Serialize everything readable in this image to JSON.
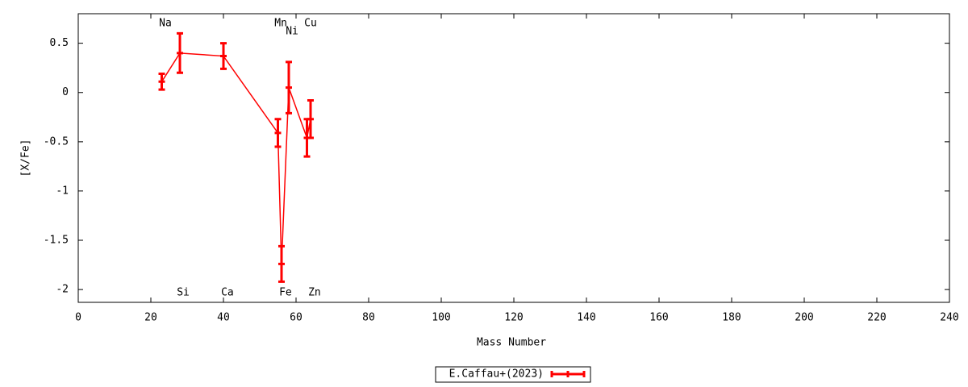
{
  "chart_data": {
    "type": "line",
    "xlabel": "Mass Number",
    "ylabel": "[X/Fe]",
    "xlim": [
      0,
      240
    ],
    "ylim": [
      -2.13,
      0.8
    ],
    "xticks": [
      0,
      20,
      40,
      60,
      80,
      100,
      120,
      140,
      160,
      180,
      200,
      220,
      240
    ],
    "yticks": [
      0.5,
      0,
      -0.5,
      -1,
      -1.5,
      -2
    ],
    "grid": false,
    "legend": "bottom",
    "x": [
      23,
      28,
      40,
      55,
      56,
      58,
      63,
      64
    ],
    "series": [
      {
        "name": "E.Caffau+(2023)",
        "color": "#ff0000",
        "values": [
          0.11,
          0.4,
          0.37,
          -0.41,
          -1.74,
          0.05,
          -0.46,
          -0.27
        ],
        "errors": [
          0.08,
          0.2,
          0.13,
          0.14,
          0.18,
          0.26,
          0.19,
          0.19
        ]
      }
    ],
    "annotations": [
      {
        "text": "Na",
        "x": 24,
        "y": 0.7
      },
      {
        "text": "Mn",
        "x": 55.8,
        "y": 0.7
      },
      {
        "text": "Ni",
        "x": 58.9,
        "y": 0.62
      },
      {
        "text": "Cu",
        "x": 64,
        "y": 0.7
      },
      {
        "text": "Si",
        "x": 28.9,
        "y": -2.03
      },
      {
        "text": "Ca",
        "x": 41.1,
        "y": -2.03
      },
      {
        "text": "Fe",
        "x": 57.1,
        "y": -2.03
      },
      {
        "text": "Zn",
        "x": 65.1,
        "y": -2.03
      }
    ]
  }
}
